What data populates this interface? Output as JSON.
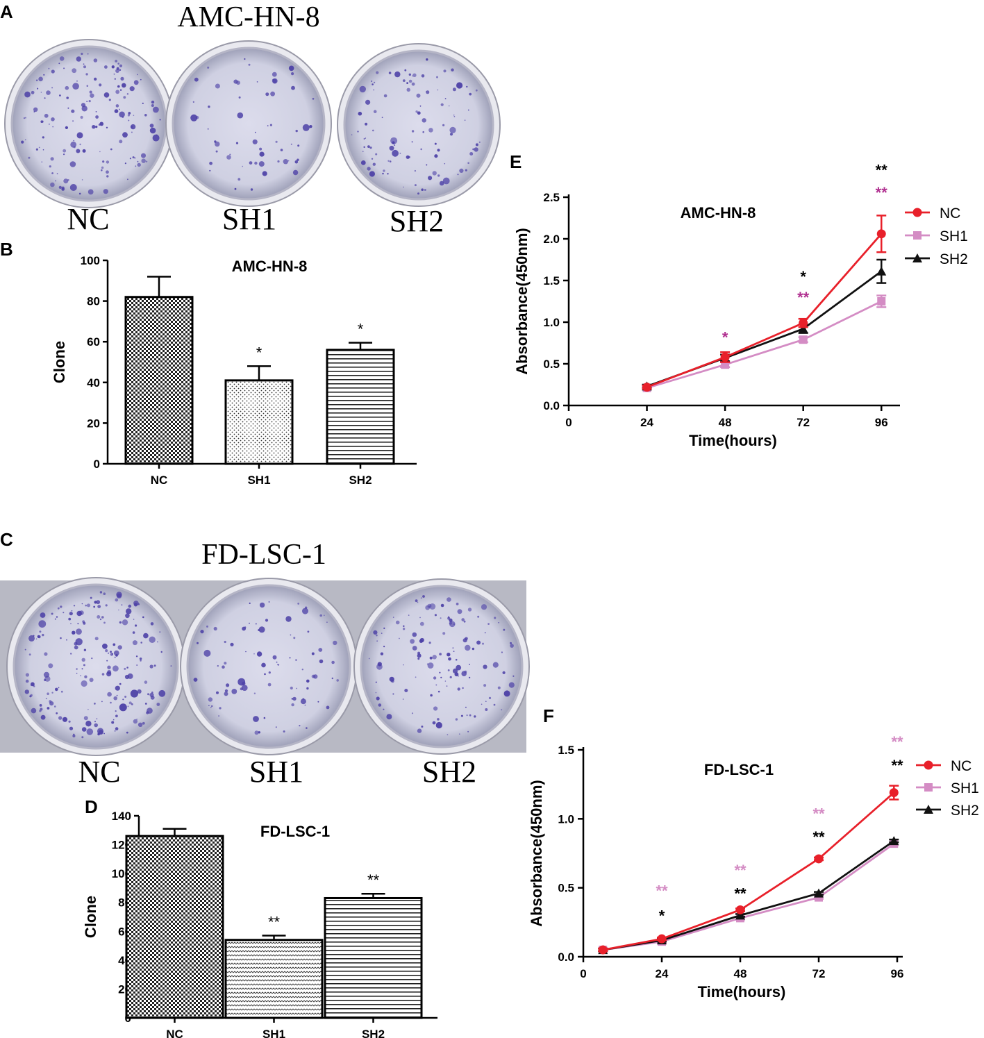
{
  "colors": {
    "nc": "#e8202a",
    "sh1": "#d48cc4",
    "sh2": "#111111",
    "star_magenta": "#b03090",
    "star_pink": "#d48cc4",
    "dish_stain": "#4b3fa6"
  },
  "panels": {
    "A": {
      "letter": "A",
      "title": "AMC-HN-8",
      "labels": [
        "NC",
        "SH1",
        "SH2"
      ]
    },
    "C": {
      "letter": "C",
      "title": "FD-LSC-1",
      "labels": [
        "NC",
        "SH1",
        "SH2"
      ]
    }
  },
  "chart_data": [
    {
      "id": "B",
      "letter": "B",
      "type": "bar",
      "title": "AMC-HN-8",
      "ylabel": "Clone",
      "xlabel": "",
      "categories": [
        "NC",
        "SH1",
        "SH2"
      ],
      "values": [
        82,
        41,
        56
      ],
      "errors": [
        10,
        7,
        3.5
      ],
      "significance": [
        "",
        "*",
        "*"
      ],
      "ylim": [
        0,
        100
      ],
      "yticks": [
        "0",
        "20",
        "40",
        "60",
        "80",
        "100"
      ],
      "patterns": [
        "checker",
        "dots",
        "hlines"
      ]
    },
    {
      "id": "D",
      "letter": "D",
      "type": "bar",
      "title": "FD-LSC-1",
      "ylabel": "Clone",
      "xlabel": "",
      "categories": [
        "NC",
        "SH1",
        "SH2"
      ],
      "values": [
        126,
        54,
        83
      ],
      "errors": [
        5,
        3,
        3
      ],
      "significance": [
        "",
        "**",
        "**"
      ],
      "ylim": [
        0,
        140
      ],
      "yticks": [
        "0",
        "20",
        "40",
        "60",
        "80",
        "100",
        "120",
        "140"
      ],
      "patterns": [
        "checker",
        "waves",
        "hlines"
      ]
    },
    {
      "id": "E",
      "letter": "E",
      "type": "line",
      "title": "AMC-HN-8",
      "xlabel": "Time(hours)",
      "ylabel": "Absorbance(450nm)",
      "xlim": [
        0,
        100
      ],
      "ylim": [
        0,
        2.5
      ],
      "xticks": [
        "0",
        "24",
        "48",
        "72",
        "96"
      ],
      "yticks": [
        "0.0",
        "0.5",
        "1.0",
        "1.5",
        "2.0",
        "2.5"
      ],
      "series": [
        {
          "name": "NC",
          "marker": "circle",
          "x": [
            24,
            48,
            72,
            96
          ],
          "y": [
            0.22,
            0.58,
            0.99,
            2.06
          ],
          "err": [
            0.02,
            0.06,
            0.05,
            0.22
          ]
        },
        {
          "name": "SH1",
          "marker": "square",
          "x": [
            24,
            48,
            72,
            96
          ],
          "y": [
            0.21,
            0.49,
            0.79,
            1.25
          ],
          "err": [
            0.02,
            0.03,
            0.03,
            0.07
          ]
        },
        {
          "name": "SH2",
          "marker": "triangle",
          "x": [
            24,
            48,
            72,
            96
          ],
          "y": [
            0.23,
            0.57,
            0.92,
            1.61
          ],
          "err": [
            0.02,
            0.04,
            0.05,
            0.14
          ]
        }
      ],
      "annotations": [
        {
          "x": 48,
          "y": 0.82,
          "text": "*",
          "color": "magenta"
        },
        {
          "x": 72,
          "y": 1.55,
          "text": "*",
          "color": "black"
        },
        {
          "x": 72,
          "y": 1.3,
          "text": "**",
          "color": "magenta"
        },
        {
          "x": 96,
          "y": 2.83,
          "text": "**",
          "color": "black"
        },
        {
          "x": 96,
          "y": 2.56,
          "text": "**",
          "color": "magenta"
        }
      ]
    },
    {
      "id": "F",
      "letter": "F",
      "type": "line",
      "title": "FD-LSC-1",
      "xlabel": "Time(hours)",
      "ylabel": "Absorbance(450nm)",
      "xlim": [
        0,
        96
      ],
      "ylim": [
        0,
        1.5
      ],
      "xticks": [
        "0",
        "24",
        "48",
        "72",
        "96"
      ],
      "yticks": [
        "0.0",
        "0.5",
        "1.0",
        "1.5"
      ],
      "series": [
        {
          "name": "NC",
          "marker": "circle",
          "x": [
            6,
            24,
            48,
            72,
            95
          ],
          "y": [
            0.05,
            0.13,
            0.34,
            0.71,
            1.19
          ],
          "err": [
            0.01,
            0.01,
            0.01,
            0.01,
            0.05
          ]
        },
        {
          "name": "SH1",
          "marker": "square",
          "x": [
            6,
            24,
            48,
            72,
            95
          ],
          "y": [
            0.05,
            0.11,
            0.28,
            0.43,
            0.82
          ],
          "err": [
            0.01,
            0.01,
            0.01,
            0.01,
            0.01
          ]
        },
        {
          "name": "SH2",
          "marker": "triangle",
          "x": [
            6,
            24,
            48,
            72,
            95
          ],
          "y": [
            0.05,
            0.12,
            0.3,
            0.46,
            0.84
          ],
          "err": [
            0.01,
            0.01,
            0.01,
            0.01,
            0.01
          ]
        }
      ],
      "annotations": [
        {
          "x": 24,
          "y": 0.48,
          "text": "**",
          "color": "pink"
        },
        {
          "x": 24,
          "y": 0.3,
          "text": "*",
          "color": "black"
        },
        {
          "x": 48,
          "y": 0.63,
          "text": "**",
          "color": "pink"
        },
        {
          "x": 48,
          "y": 0.46,
          "text": "**",
          "color": "black"
        },
        {
          "x": 72,
          "y": 1.04,
          "text": "**",
          "color": "pink"
        },
        {
          "x": 72,
          "y": 0.87,
          "text": "**",
          "color": "black"
        },
        {
          "x": 96,
          "y": 1.56,
          "text": "**",
          "color": "pink"
        },
        {
          "x": 96,
          "y": 1.39,
          "text": "**",
          "color": "black"
        }
      ]
    }
  ]
}
